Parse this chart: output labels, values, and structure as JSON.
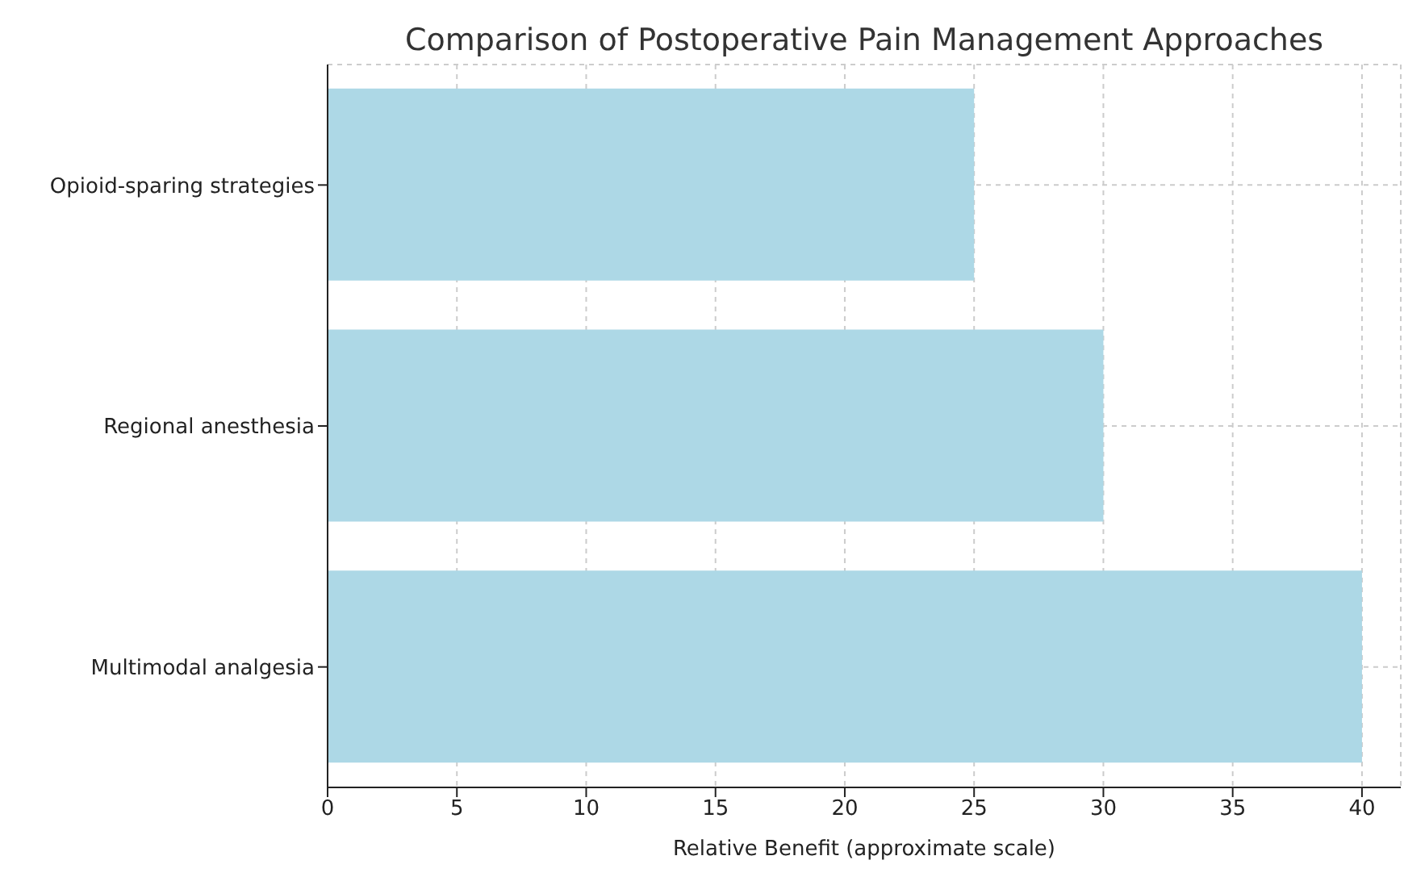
{
  "chart_data": {
    "type": "bar",
    "orientation": "horizontal",
    "title": "Comparison of Postoperative Pain Management Approaches",
    "xlabel": "Relative Benefit (approximate scale)",
    "categories": [
      "Opioid-sparing strategies",
      "Regional anesthesia",
      "Multimodal analgesia"
    ],
    "values": [
      25,
      30,
      40
    ],
    "color": "#add8e6",
    "xlim": [
      0,
      41.5
    ],
    "xticks": [
      0,
      5,
      10,
      15,
      20,
      25,
      30,
      35,
      40
    ],
    "grid": true
  }
}
